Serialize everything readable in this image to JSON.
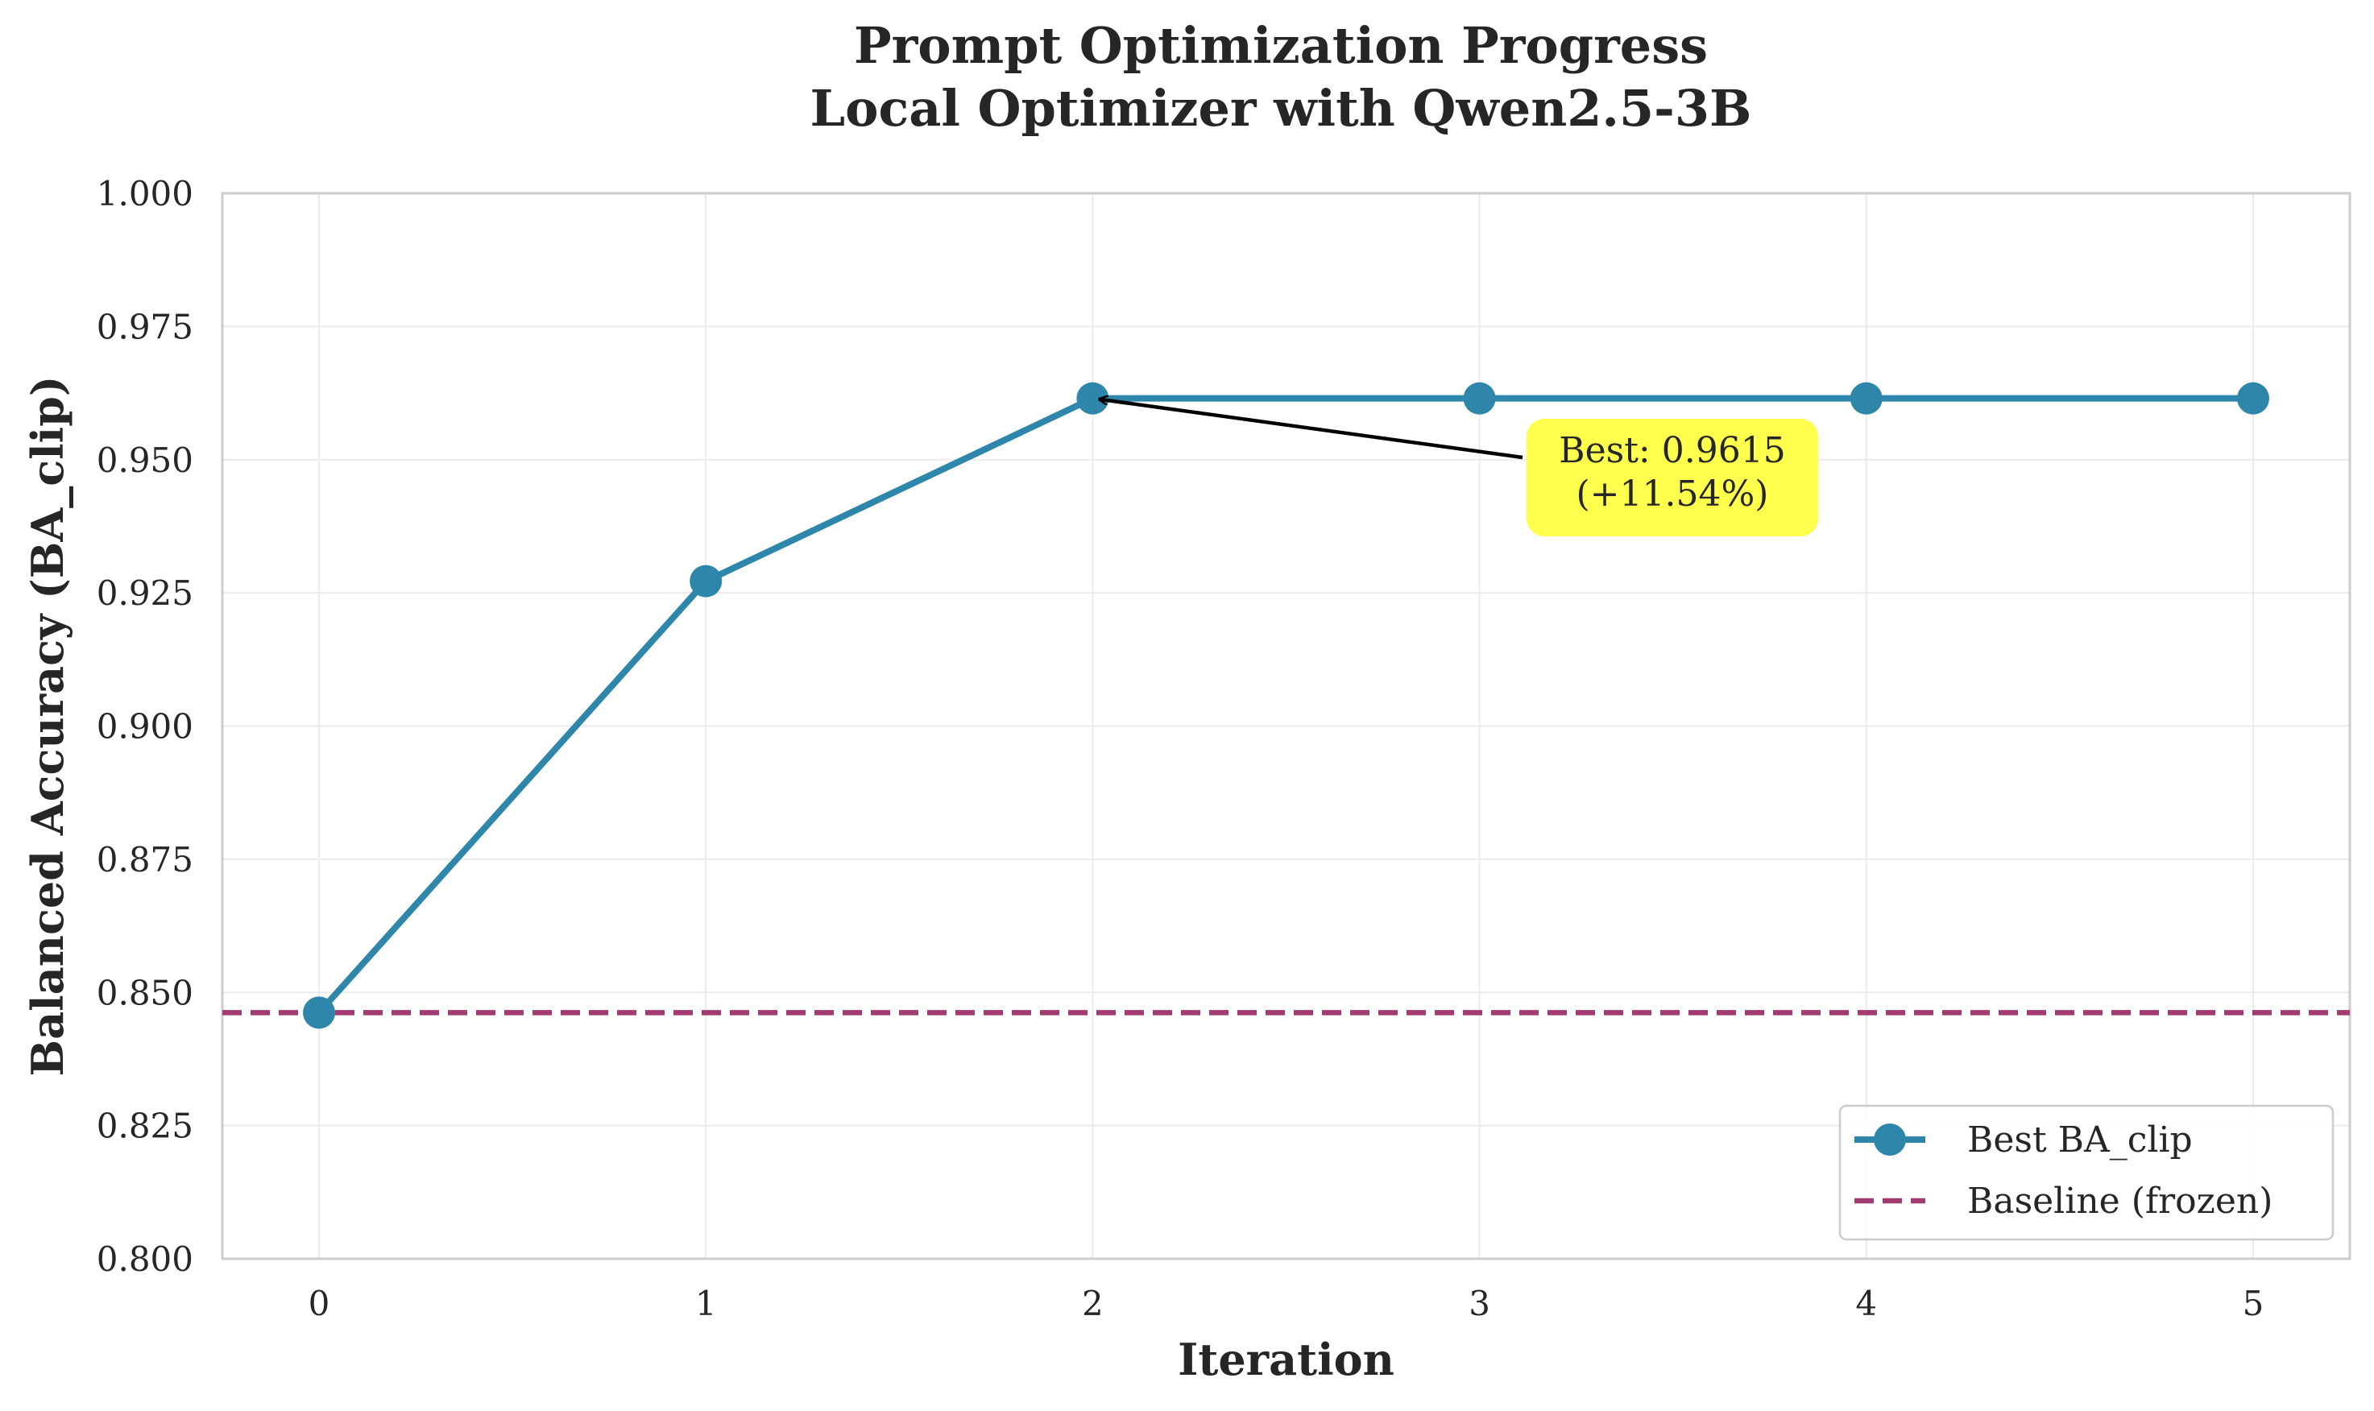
{
  "chart_data": {
    "type": "line",
    "title": [
      "Prompt Optimization Progress",
      "Local Optimizer with Qwen2.5-3B"
    ],
    "xlabel": "Iteration",
    "ylabel": "Balanced Accuracy (BA_clip)",
    "xlim": [
      -0.25,
      5.25
    ],
    "ylim": [
      0.8,
      1.0
    ],
    "x_ticks": [
      0,
      1,
      2,
      3,
      4,
      5
    ],
    "x_tick_labels": [
      "0",
      "1",
      "2",
      "3",
      "4",
      "5"
    ],
    "y_ticks": [
      0.8,
      0.825,
      0.85,
      0.875,
      0.9,
      0.925,
      0.95,
      0.975,
      1.0
    ],
    "y_tick_labels": [
      "0.800",
      "0.825",
      "0.850",
      "0.875",
      "0.900",
      "0.925",
      "0.950",
      "0.975",
      "1.000"
    ],
    "grid": true,
    "series": [
      {
        "name": "Best BA_clip",
        "x": [
          0,
          1,
          2,
          3,
          4,
          5
        ],
        "values": [
          0.8462,
          0.9272,
          0.9615,
          0.9615,
          0.9615,
          0.9615
        ],
        "color": "#2e86ab",
        "marker": "circle",
        "style": "solid"
      },
      {
        "name": "Baseline (frozen)",
        "type": "hline",
        "value": 0.8462,
        "color": "#a23b72",
        "style": "dashed"
      }
    ],
    "annotation": {
      "lines": [
        "Best: 0.9615",
        "(+11.54%)"
      ],
      "points_to": {
        "x": 2,
        "y": 0.9615
      },
      "box_color": "#ffff4d"
    },
    "legend": {
      "placement": "lower-right",
      "entries": [
        "Best BA_clip",
        "Baseline (frozen)"
      ]
    }
  }
}
